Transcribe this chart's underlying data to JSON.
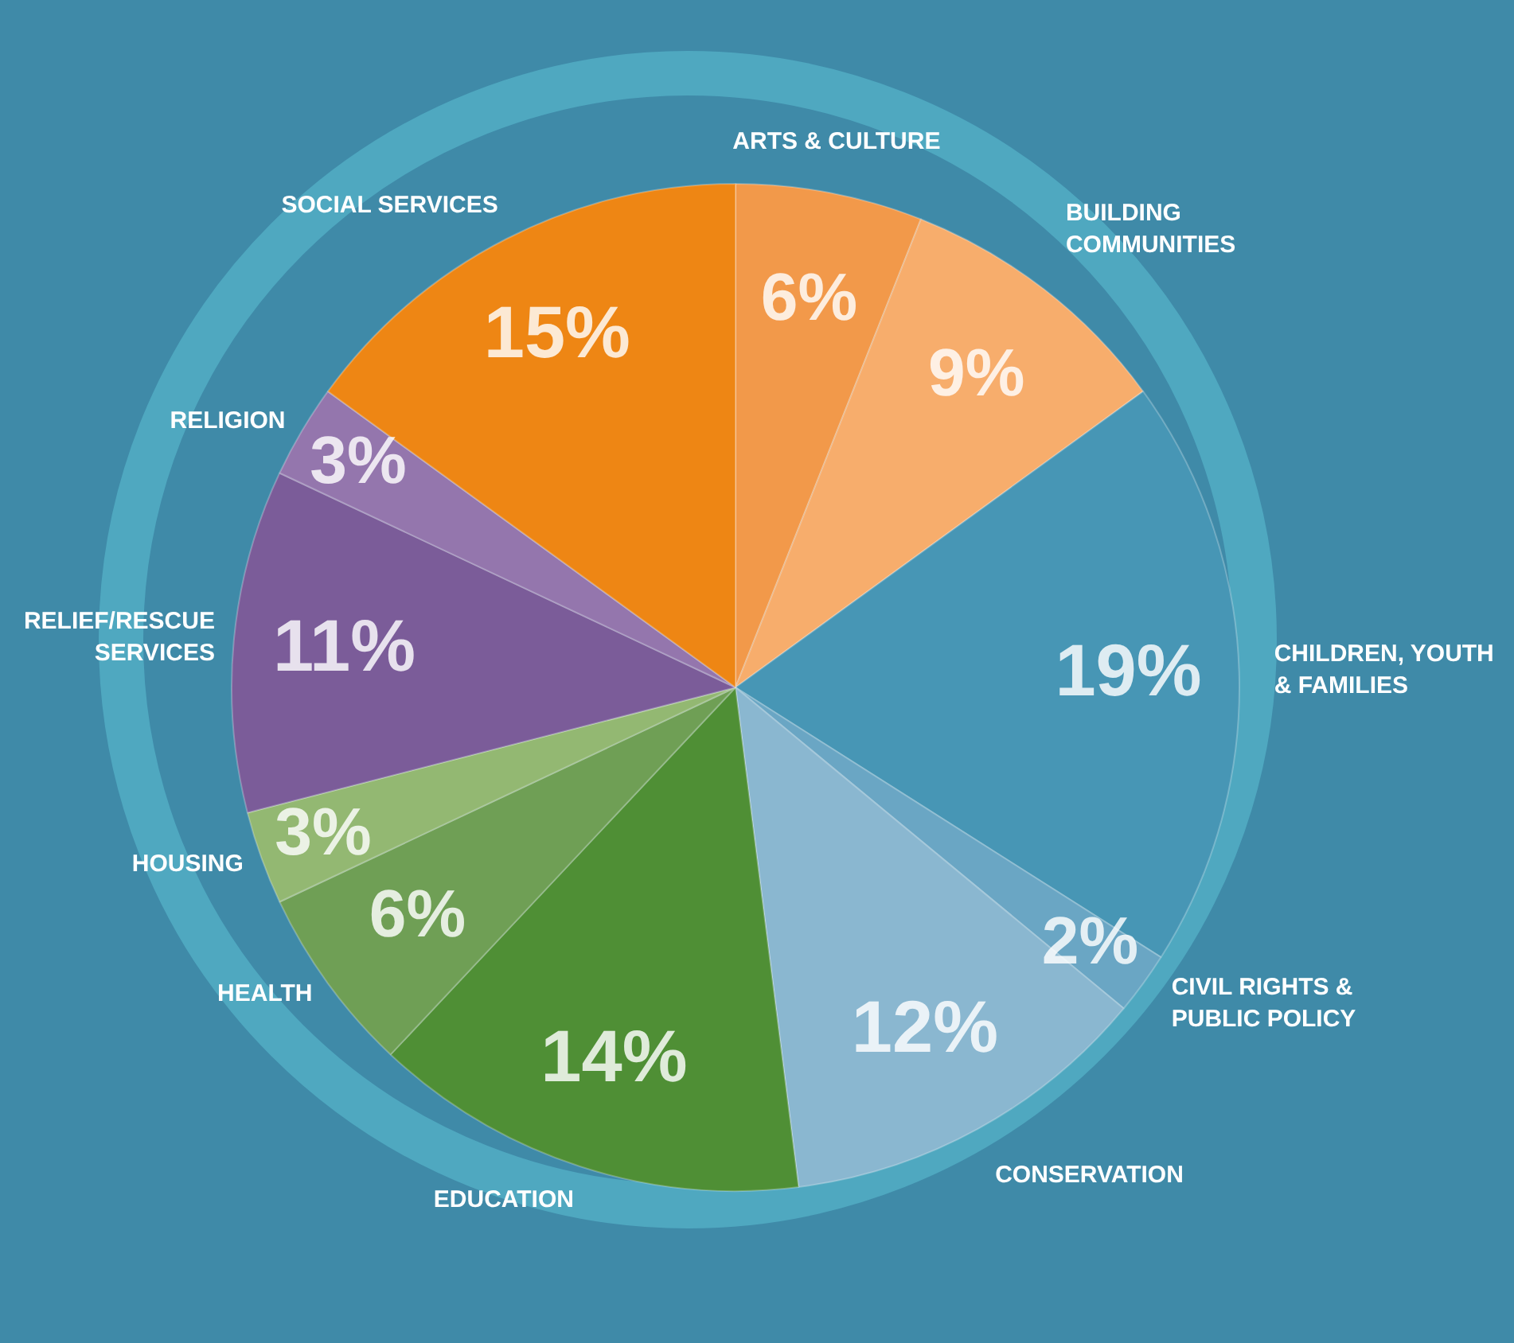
{
  "chart_data": {
    "type": "pie",
    "categories": [
      "ARTS & CULTURE",
      "BUILDING COMMUNITIES",
      "CHILDREN, YOUTH & FAMILIES",
      "CIVIL RIGHTS & PUBLIC POLICY",
      "CONSERVATION",
      "EDUCATION",
      "HEALTH",
      "HOUSING",
      "RELIEF/RESCUE SERVICES",
      "RELIGION",
      "SOCIAL SERVICES"
    ],
    "values": [
      6,
      9,
      19,
      2,
      12,
      14,
      6,
      3,
      11,
      3,
      15
    ],
    "value_labels": [
      "6%",
      "9%",
      "19%",
      "2%",
      "12%",
      "14%",
      "6%",
      "3%",
      "11%",
      "3%",
      "15%"
    ],
    "colors": [
      "#f2994a",
      "#f7ad6c",
      "#4796b5",
      "#6aa6c4",
      "#8ab7d0",
      "#4f8f35",
      "#6f9f55",
      "#93b872",
      "#7b5c99",
      "#9476ad",
      "#ee8614"
    ],
    "legend": false
  }
}
